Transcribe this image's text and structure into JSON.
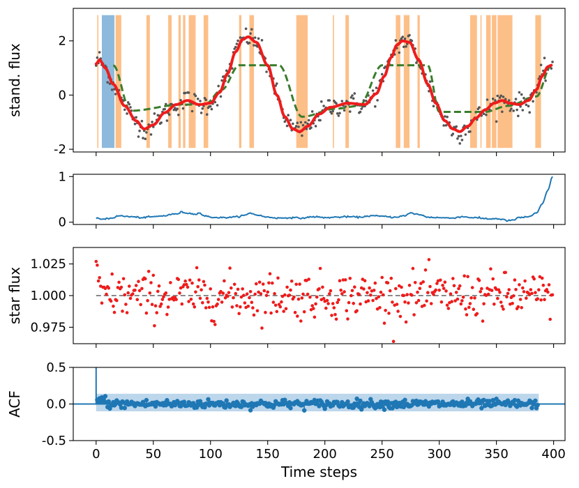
{
  "chart_data": [
    {
      "type": "line",
      "panel": "flux",
      "ylabel": "stand. flux",
      "xlim": [
        -20,
        410
      ],
      "ylim": [
        -2.1,
        3.2
      ],
      "yticks": [
        -2,
        0,
        2
      ],
      "xticks": [
        0,
        50,
        100,
        150,
        200,
        250,
        300,
        350,
        400
      ],
      "colors": {
        "fit": "#ee1c1c",
        "step": "#3a7d2c",
        "points": "#555555",
        "orange_band": "#fdbf88",
        "blue_band": "#8dbadc"
      },
      "blue_band": [
        [
          5,
          16
        ]
      ],
      "orange_bands": [
        [
          1,
          2
        ],
        [
          17,
          22
        ],
        [
          44,
          47
        ],
        [
          63,
          66
        ],
        [
          72,
          74
        ],
        [
          76,
          78
        ],
        [
          81,
          87
        ],
        [
          94,
          98
        ],
        [
          125,
          127
        ],
        [
          134,
          138
        ],
        [
          175,
          185
        ],
        [
          207,
          208
        ],
        [
          218,
          221
        ],
        [
          262,
          266
        ],
        [
          269,
          274
        ],
        [
          281,
          283
        ],
        [
          327,
          333
        ],
        [
          336,
          337
        ],
        [
          341,
          345
        ],
        [
          346,
          350
        ],
        [
          351,
          364
        ],
        [
          384,
          389
        ]
      ],
      "step_series": [
        [
          15,
          1.1
        ],
        [
          30,
          -0.58
        ],
        [
          75,
          -0.35
        ],
        [
          95,
          -0.35
        ],
        [
          110,
          0.2
        ],
        [
          125,
          1.1
        ],
        [
          160,
          1.1
        ],
        [
          180,
          -0.8
        ],
        [
          210,
          -0.5
        ],
        [
          230,
          -0.4
        ],
        [
          250,
          1.1
        ],
        [
          290,
          1.1
        ],
        [
          300,
          -0.62
        ],
        [
          340,
          -0.62
        ],
        [
          360,
          -0.4
        ],
        [
          385,
          -0.05
        ],
        [
          398,
          1.1
        ]
      ],
      "fit_series": [
        [
          0,
          1.15
        ],
        [
          3,
          1.3
        ],
        [
          8,
          1.0
        ],
        [
          15,
          0.4
        ],
        [
          25,
          -0.4
        ],
        [
          35,
          -0.95
        ],
        [
          42,
          -1.25
        ],
        [
          50,
          -1.1
        ],
        [
          60,
          -0.65
        ],
        [
          70,
          -0.35
        ],
        [
          80,
          -0.2
        ],
        [
          90,
          -0.35
        ],
        [
          100,
          -0.3
        ],
        [
          108,
          0.1
        ],
        [
          115,
          0.8
        ],
        [
          122,
          1.6
        ],
        [
          128,
          2.05
        ],
        [
          133,
          2.15
        ],
        [
          140,
          1.95
        ],
        [
          150,
          1.1
        ],
        [
          158,
          0.0
        ],
        [
          165,
          -0.8
        ],
        [
          172,
          -1.25
        ],
        [
          178,
          -1.35
        ],
        [
          185,
          -1.15
        ],
        [
          195,
          -0.7
        ],
        [
          205,
          -0.45
        ],
        [
          220,
          -0.3
        ],
        [
          235,
          -0.35
        ],
        [
          245,
          0.05
        ],
        [
          252,
          0.7
        ],
        [
          258,
          1.4
        ],
        [
          263,
          1.85
        ],
        [
          268,
          2.0
        ],
        [
          274,
          1.95
        ],
        [
          282,
          1.3
        ],
        [
          290,
          0.4
        ],
        [
          297,
          -0.3
        ],
        [
          305,
          -0.95
        ],
        [
          312,
          -1.25
        ],
        [
          318,
          -1.35
        ],
        [
          325,
          -1.15
        ],
        [
          332,
          -0.85
        ],
        [
          340,
          -0.55
        ],
        [
          348,
          -0.3
        ],
        [
          355,
          -0.2
        ],
        [
          362,
          -0.3
        ],
        [
          370,
          -0.35
        ],
        [
          378,
          -0.2
        ],
        [
          385,
          0.2
        ],
        [
          390,
          0.7
        ],
        [
          395,
          1.05
        ],
        [
          398,
          1.1
        ]
      ]
    },
    {
      "type": "line",
      "panel": "weight",
      "ylabel": "",
      "xlim": [
        -20,
        410
      ],
      "ylim": [
        -0.05,
        1.05
      ],
      "yticks": [
        0,
        1
      ],
      "color": "#1f77b4",
      "series": [
        [
          0,
          0.08
        ],
        [
          5,
          0.07
        ],
        [
          10,
          0.08
        ],
        [
          15,
          0.1
        ],
        [
          20,
          0.14
        ],
        [
          25,
          0.13
        ],
        [
          30,
          0.12
        ],
        [
          40,
          0.1
        ],
        [
          50,
          0.12
        ],
        [
          60,
          0.14
        ],
        [
          65,
          0.17
        ],
        [
          70,
          0.18
        ],
        [
          75,
          0.22
        ],
        [
          80,
          0.2
        ],
        [
          85,
          0.18
        ],
        [
          90,
          0.2
        ],
        [
          95,
          0.14
        ],
        [
          100,
          0.11
        ],
        [
          110,
          0.1
        ],
        [
          120,
          0.11
        ],
        [
          130,
          0.15
        ],
        [
          135,
          0.2
        ],
        [
          140,
          0.16
        ],
        [
          150,
          0.11
        ],
        [
          160,
          0.09
        ],
        [
          170,
          0.1
        ],
        [
          180,
          0.09
        ],
        [
          190,
          0.12
        ],
        [
          200,
          0.1
        ],
        [
          210,
          0.11
        ],
        [
          220,
          0.12
        ],
        [
          230,
          0.11
        ],
        [
          240,
          0.14
        ],
        [
          250,
          0.13
        ],
        [
          260,
          0.11
        ],
        [
          270,
          0.14
        ],
        [
          275,
          0.2
        ],
        [
          280,
          0.18
        ],
        [
          285,
          0.15
        ],
        [
          290,
          0.11
        ],
        [
          300,
          0.1
        ],
        [
          310,
          0.09
        ],
        [
          320,
          0.12
        ],
        [
          330,
          0.1
        ],
        [
          340,
          0.08
        ],
        [
          345,
          0.07
        ],
        [
          350,
          0.08
        ],
        [
          355,
          0.06
        ],
        [
          360,
          0.03
        ],
        [
          365,
          0.05
        ],
        [
          370,
          0.1
        ],
        [
          378,
          0.12
        ],
        [
          385,
          0.2
        ],
        [
          390,
          0.4
        ],
        [
          395,
          0.7
        ],
        [
          399,
          1.0
        ]
      ]
    },
    {
      "type": "scatter",
      "panel": "star",
      "ylabel": "star flux",
      "xlim": [
        -20,
        410
      ],
      "ylim": [
        0.962,
        1.038
      ],
      "yticks": [
        "0.975",
        "1.000",
        "1.025"
      ],
      "baseline": 1.0,
      "color": "#ee1c1c",
      "baseline_color": "#888888",
      "sigma": 0.009,
      "n": 400
    },
    {
      "type": "scatter",
      "panel": "acf",
      "ylabel": "ACF",
      "xlabel": "Time steps",
      "xlim": [
        -20,
        410
      ],
      "ylim": [
        -0.5,
        0.5
      ],
      "yticks": [
        "0.5",
        "0.0",
        "-0.5"
      ],
      "xticklabels": [
        "0",
        "50",
        "100",
        "150",
        "200",
        "250",
        "300",
        "350",
        "400"
      ],
      "color": "#1f77b4",
      "band_color": "#bcd6eb",
      "band": [
        0,
        387,
        -0.1,
        0.14
      ],
      "lag0": 0.5
    }
  ]
}
